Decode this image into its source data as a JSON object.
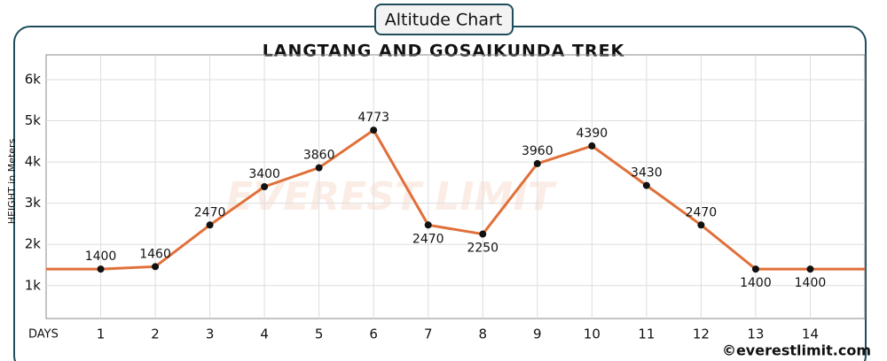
{
  "chart_data": {
    "type": "line",
    "title": "Altitude Chart",
    "subtitle": "LANGTANG AND GOSAIKUNDA TREK",
    "y_label": "HEIGHT in Meters",
    "x_label": "DAYS",
    "watermark": "EVEREST LIMIT",
    "footer": "©everestlimit.com",
    "x": [
      1,
      2,
      3,
      4,
      5,
      6,
      7,
      8,
      9,
      10,
      11,
      12,
      13,
      14
    ],
    "xlim": [
      0,
      15
    ],
    "xticks": [
      1,
      2,
      3,
      4,
      5,
      6,
      7,
      8,
      9,
      10,
      11,
      12,
      13,
      14
    ],
    "ylim": [
      200,
      6600
    ],
    "yticks": [
      {
        "value": 1000,
        "label": "1k"
      },
      {
        "value": 2000,
        "label": "2k"
      },
      {
        "value": 3000,
        "label": "3k"
      },
      {
        "value": 4000,
        "label": "4k"
      },
      {
        "value": 5000,
        "label": "5k"
      },
      {
        "value": 6000,
        "label": "6k"
      }
    ],
    "grid": true,
    "series": [
      {
        "name": "Altitude",
        "color": "#e0703a",
        "values": [
          1400,
          1460,
          2470,
          3400,
          3860,
          4773,
          2470,
          2250,
          3960,
          4390,
          3430,
          2470,
          1400,
          1400
        ]
      }
    ]
  }
}
